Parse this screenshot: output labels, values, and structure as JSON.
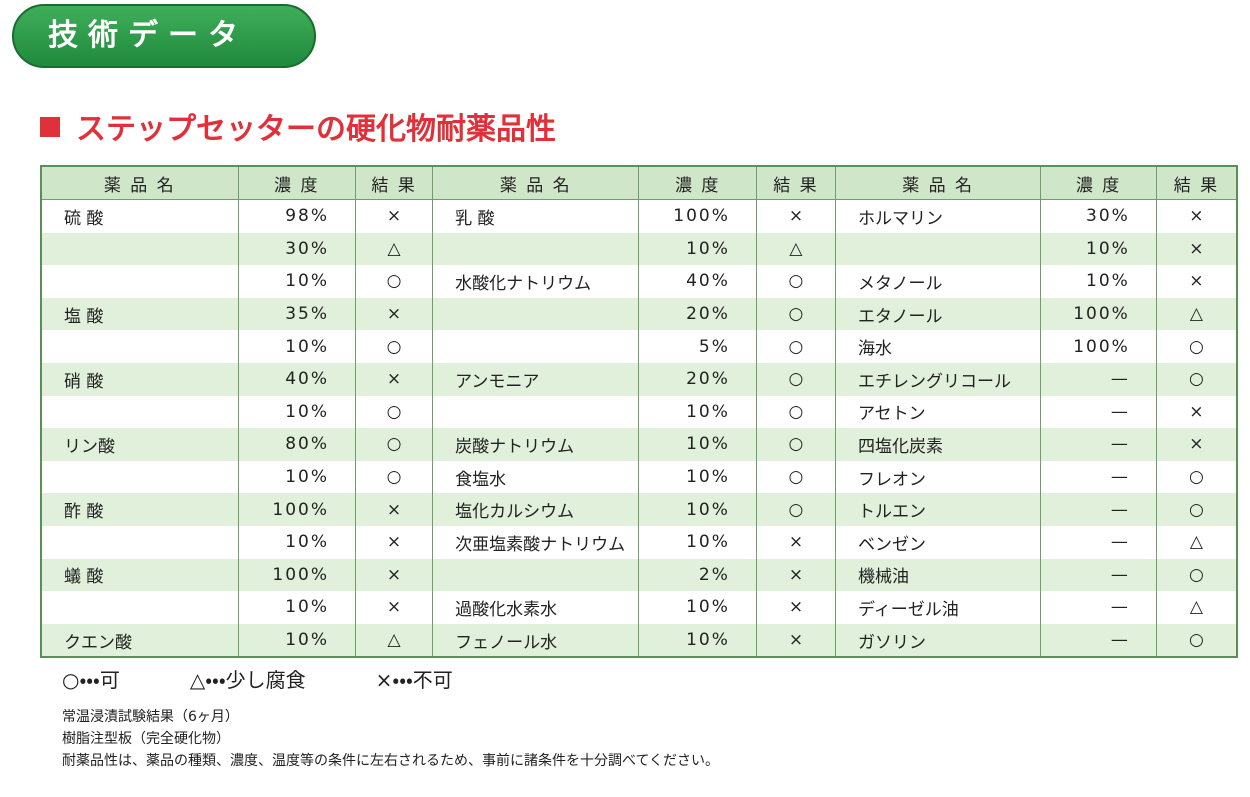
{
  "header": {
    "title": "技術データ"
  },
  "section": {
    "title": "ステップセッターの硬化物耐薬品性"
  },
  "table": {
    "columns": [
      "薬 品 名",
      "濃 度",
      "結 果",
      "薬 品 名",
      "濃 度",
      "結 果",
      "薬 品 名",
      "濃 度",
      "結 果"
    ],
    "rows": [
      [
        "硫 酸",
        "98%",
        "×",
        "乳 酸",
        "100%",
        "×",
        "ホルマリン",
        "30%",
        "×"
      ],
      [
        null,
        "30%",
        "△",
        null,
        "10%",
        "△",
        null,
        "10%",
        "×"
      ],
      [
        null,
        "10%",
        "○",
        "水酸化ナトリウム",
        "40%",
        "○",
        "メタノール",
        "10%",
        "×"
      ],
      [
        "塩 酸",
        "35%",
        "×",
        null,
        "20%",
        "○",
        "エタノール",
        "100%",
        "△"
      ],
      [
        null,
        "10%",
        "○",
        null,
        "5%",
        "○",
        "海水",
        "100%",
        "○"
      ],
      [
        "硝 酸",
        "40%",
        "×",
        "アンモニア",
        "20%",
        "○",
        "エチレングリコール",
        "—",
        "○"
      ],
      [
        null,
        "10%",
        "○",
        null,
        "10%",
        "○",
        "アセトン",
        "—",
        "×"
      ],
      [
        "リン酸",
        "80%",
        "○",
        "炭酸ナトリウム",
        "10%",
        "○",
        "四塩化炭素",
        "—",
        "×"
      ],
      [
        null,
        "10%",
        "○",
        "食塩水",
        "10%",
        "○",
        "フレオン",
        "—",
        "○"
      ],
      [
        "酢 酸",
        "100%",
        "×",
        "塩化カルシウム",
        "10%",
        "○",
        "トルエン",
        "—",
        "○"
      ],
      [
        null,
        "10%",
        "×",
        "次亜塩素酸ナトリウム",
        "10%",
        "×",
        "ベンゼン",
        "—",
        "△"
      ],
      [
        "蟻 酸",
        "100%",
        "×",
        null,
        "2%",
        "×",
        "機械油",
        "—",
        "○"
      ],
      [
        null,
        "10%",
        "×",
        "過酸化水素水",
        "10%",
        "×",
        "ディーゼル油",
        "—",
        "△"
      ],
      [
        "クエン酸",
        "10%",
        "△",
        "フェノール水",
        "10%",
        "×",
        "ガソリン",
        "—",
        "○"
      ]
    ]
  },
  "legend": [
    "○・・・可",
    "△・・・少し腐食",
    "×・・・不可"
  ],
  "notes": [
    "常温浸漬試験結果（6ヶ月）",
    "樹脂注型板（完全硬化物）",
    "耐薬品性は、薬品の種類、濃度、温度等の条件に左右されるため、事前に諸条件を十分調べてください。"
  ]
}
